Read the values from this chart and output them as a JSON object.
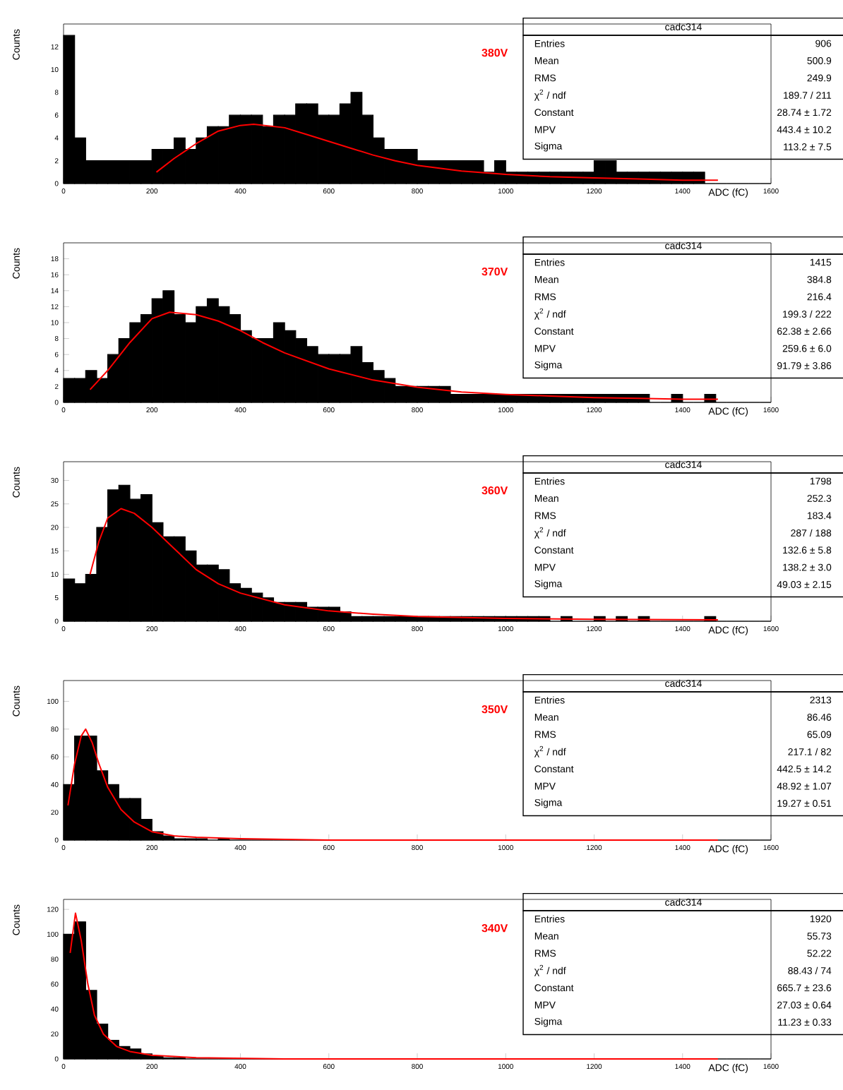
{
  "chart_data": [
    {
      "type": "histogram",
      "title": "380V",
      "xlabel": "ADC (fC)",
      "ylabel": "Counts",
      "series": [
        {
          "type": "histogram",
          "color": "#000000",
          "bins": [
            0,
            25,
            50,
            75,
            100,
            125,
            150,
            175,
            200,
            225,
            250,
            275,
            300,
            325,
            350,
            375,
            400,
            425,
            450,
            475,
            500,
            525,
            550,
            575,
            600,
            625,
            650,
            675,
            700,
            725,
            750,
            775,
            800,
            825,
            850,
            875,
            900,
            925,
            950,
            975,
            1000,
            1025,
            1050,
            1075,
            1100,
            1125,
            1150,
            1175,
            1200,
            1225,
            1250,
            1275,
            1300,
            1325,
            1350,
            1375,
            1400,
            1425,
            1450,
            1475,
            1500,
            1525,
            1550,
            1575,
            1600
          ],
          "values": [
            13,
            4,
            2,
            2,
            2,
            2,
            2,
            2,
            3,
            3,
            4,
            3,
            4,
            5,
            5,
            6,
            6,
            6,
            5,
            6,
            6,
            7,
            7,
            6,
            6,
            7,
            8,
            6,
            4,
            3,
            3,
            3,
            2,
            2,
            2,
            2,
            2,
            2,
            1,
            2,
            1,
            1,
            1,
            1,
            1,
            1,
            1,
            1,
            2,
            2,
            1,
            1,
            1,
            1,
            1,
            1,
            1,
            1,
            0,
            0,
            0,
            0,
            0,
            0
          ]
        },
        {
          "type": "line",
          "color": "#ff0000",
          "x": [
            210,
            250,
            300,
            350,
            400,
            430,
            500,
            550,
            600,
            650,
            700,
            750,
            800,
            900,
            1000,
            1100,
            1200,
            1300,
            1400,
            1480
          ],
          "values": [
            1.0,
            2.2,
            3.5,
            4.6,
            5.1,
            5.2,
            4.9,
            4.3,
            3.7,
            3.1,
            2.5,
            2.0,
            1.6,
            1.1,
            0.8,
            0.6,
            0.5,
            0.4,
            0.3,
            0.3
          ]
        }
      ],
      "xlim": [
        0,
        1600
      ],
      "ylim": [
        0,
        14
      ],
      "xticks": [
        0,
        200,
        400,
        600,
        800,
        1000,
        1200,
        1400,
        1600
      ],
      "yticks": [
        0,
        2,
        4,
        6,
        8,
        10,
        12
      ],
      "annotations": [
        "cadc314",
        "Entries",
        "906",
        "Mean",
        "500.9",
        "RMS",
        "249.9",
        "χ$^{2}$ / ndf",
        "189.7 / 211",
        "Constant",
        "28.74 ± 1.72",
        "MPV",
        "443.4 ± 10.2",
        "Sigma",
        "113.2 ± 7.5"
      ]
    },
    {
      "type": "histogram",
      "title": "370V",
      "xlabel": "ADC (fC)",
      "ylabel": "Counts",
      "series": [
        {
          "type": "histogram",
          "color": "#000000",
          "bins": [
            0,
            25,
            50,
            75,
            100,
            125,
            150,
            175,
            200,
            225,
            250,
            275,
            300,
            325,
            350,
            375,
            400,
            425,
            450,
            475,
            500,
            525,
            550,
            575,
            600,
            625,
            650,
            675,
            700,
            725,
            750,
            775,
            800,
            825,
            850,
            875,
            900,
            925,
            950,
            975,
            1000,
            1025,
            1050,
            1075,
            1100,
            1125,
            1150,
            1175,
            1200,
            1225,
            1250,
            1275,
            1300,
            1325,
            1350,
            1375,
            1400,
            1425,
            1450,
            1475,
            1500,
            1525,
            1550,
            1575,
            1600
          ],
          "values": [
            3,
            3,
            4,
            3,
            6,
            8,
            10,
            11,
            13,
            14,
            11,
            10,
            12,
            13,
            12,
            11,
            9,
            8,
            8,
            10,
            9,
            8,
            7,
            6,
            6,
            6,
            7,
            5,
            4,
            3,
            2,
            2,
            2,
            2,
            2,
            1,
            1,
            1,
            1,
            1,
            1,
            1,
            1,
            1,
            1,
            1,
            1,
            1,
            1,
            1,
            1,
            1,
            1,
            0,
            0,
            1,
            0,
            0,
            1,
            0,
            0,
            0,
            0,
            0
          ]
        },
        {
          "type": "line",
          "color": "#ff0000",
          "x": [
            60,
            100,
            150,
            200,
            240,
            300,
            350,
            400,
            450,
            500,
            600,
            700,
            800,
            900,
            1000,
            1100,
            1200,
            1300,
            1400,
            1480
          ],
          "values": [
            1.6,
            4,
            7.5,
            10.5,
            11.3,
            11,
            10.2,
            9,
            7.5,
            6.2,
            4.2,
            2.8,
            1.9,
            1.3,
            1.0,
            0.8,
            0.6,
            0.5,
            0.4,
            0.4
          ]
        }
      ],
      "xlim": [
        0,
        1600
      ],
      "ylim": [
        0,
        20
      ],
      "xticks": [
        0,
        200,
        400,
        600,
        800,
        1000,
        1200,
        1400,
        1600
      ],
      "yticks": [
        0,
        2,
        4,
        6,
        8,
        10,
        12,
        14,
        16,
        18
      ],
      "annotations": [
        "cadc314",
        "Entries",
        "1415",
        "Mean",
        "384.8",
        "RMS",
        "216.4",
        "χ$^{2}$ / ndf",
        "199.3 / 222",
        "Constant",
        "62.38 ± 2.66",
        "MPV",
        "259.6 ± 6.0",
        "Sigma",
        "91.79 ± 3.86"
      ]
    },
    {
      "type": "histogram",
      "title": "360V",
      "xlabel": "ADC (fC)",
      "ylabel": "Counts",
      "series": [
        {
          "type": "histogram",
          "color": "#000000",
          "bins": [
            0,
            25,
            50,
            75,
            100,
            125,
            150,
            175,
            200,
            225,
            250,
            275,
            300,
            325,
            350,
            375,
            400,
            425,
            450,
            475,
            500,
            525,
            550,
            575,
            600,
            625,
            650,
            675,
            700,
            725,
            750,
            775,
            800,
            825,
            850,
            875,
            900,
            925,
            950,
            975,
            1000,
            1025,
            1050,
            1075,
            1100,
            1125,
            1150,
            1175,
            1200,
            1225,
            1250,
            1275,
            1300,
            1325,
            1350,
            1375,
            1400,
            1425,
            1450,
            1475,
            1500,
            1525,
            1550,
            1575,
            1600
          ],
          "values": [
            9,
            8,
            10,
            20,
            28,
            29,
            26,
            27,
            21,
            18,
            18,
            15,
            12,
            12,
            11,
            8,
            7,
            6,
            5,
            4,
            4,
            4,
            3,
            3,
            3,
            2,
            1,
            1,
            1,
            1,
            1,
            1,
            1,
            1,
            1,
            1,
            1,
            1,
            1,
            1,
            1,
            1,
            1,
            1,
            0,
            1,
            0,
            0,
            1,
            0,
            1,
            0,
            1,
            0,
            0,
            0,
            0,
            0,
            1,
            0,
            0,
            0,
            0,
            0
          ]
        },
        {
          "type": "line",
          "color": "#ff0000",
          "x": [
            60,
            80,
            100,
            130,
            160,
            200,
            250,
            300,
            350,
            400,
            500,
            600,
            700,
            800,
            1000,
            1200,
            1480
          ],
          "values": [
            10,
            17,
            22,
            24,
            23,
            20,
            15.5,
            11,
            8,
            6,
            3.5,
            2.2,
            1.5,
            1,
            0.6,
            0.4,
            0.3
          ]
        }
      ],
      "xlim": [
        0,
        1600
      ],
      "ylim": [
        0,
        34
      ],
      "xticks": [
        0,
        200,
        400,
        600,
        800,
        1000,
        1200,
        1400,
        1600
      ],
      "yticks": [
        0,
        5,
        10,
        15,
        20,
        25,
        30
      ],
      "annotations": [
        "cadc314",
        "Entries",
        "1798",
        "Mean",
        "252.3",
        "RMS",
        "183.4",
        "χ$^{2}$ / ndf",
        "287 / 188",
        "Constant",
        "132.6 ± 5.8",
        "MPV",
        "138.2 ± 3.0",
        "Sigma",
        "49.03 ± 2.15"
      ]
    },
    {
      "type": "histogram",
      "title": "350V",
      "xlabel": "ADC (fC)",
      "ylabel": "Counts",
      "series": [
        {
          "type": "histogram",
          "color": "#000000",
          "bins": [
            0,
            25,
            50,
            75,
            100,
            125,
            150,
            175,
            200,
            225,
            250,
            275,
            300,
            325,
            350,
            375,
            400,
            425,
            450,
            475,
            500,
            525,
            550,
            575,
            600,
            625,
            650,
            675,
            700,
            725,
            750,
            775,
            800,
            825,
            850,
            875,
            900,
            925,
            950,
            975,
            1000,
            1025,
            1050,
            1075,
            1100,
            1125,
            1150,
            1175,
            1200,
            1225,
            1250,
            1275,
            1300,
            1325,
            1350,
            1375,
            1400,
            1425,
            1450,
            1475,
            1500,
            1525,
            1550,
            1575,
            1600
          ],
          "values": [
            40,
            75,
            75,
            50,
            40,
            30,
            30,
            15,
            6,
            3,
            1,
            1,
            1,
            0,
            1,
            0,
            0,
            0,
            0,
            0,
            0,
            0,
            0,
            0,
            0,
            0,
            0,
            0,
            0,
            0,
            0,
            0,
            0,
            0,
            0,
            0,
            0,
            0,
            0,
            0,
            0,
            0,
            0,
            0,
            0,
            0,
            0,
            0,
            0,
            0,
            0,
            0,
            0,
            0,
            0,
            0,
            0,
            0,
            0,
            0,
            0,
            0,
            0,
            0
          ]
        },
        {
          "type": "line",
          "color": "#ff0000",
          "x": [
            10,
            25,
            40,
            50,
            65,
            80,
            100,
            130,
            160,
            200,
            250,
            300,
            400,
            600,
            1000,
            1480
          ],
          "values": [
            25,
            55,
            75,
            80,
            70,
            55,
            38,
            22,
            13,
            6,
            3,
            2,
            1,
            0,
            0,
            0
          ]
        }
      ],
      "xlim": [
        0,
        1600
      ],
      "ylim": [
        0,
        115
      ],
      "xticks": [
        0,
        200,
        400,
        600,
        800,
        1000,
        1200,
        1400,
        1600
      ],
      "yticks": [
        0,
        20,
        40,
        60,
        80,
        100
      ],
      "annotations": [
        "cadc314",
        "Entries",
        "2313",
        "Mean",
        "86.46",
        "RMS",
        "65.09",
        "χ$^{2}$ / ndf",
        "217.1 / 82",
        "Constant",
        "442.5 ± 14.2",
        "MPV",
        "48.92 ± 1.07",
        "Sigma",
        "19.27 ± 0.51"
      ]
    },
    {
      "type": "histogram",
      "title": "340V",
      "xlabel": "ADC (fC)",
      "ylabel": "Counts",
      "series": [
        {
          "type": "histogram",
          "color": "#000000",
          "bins": [
            0,
            25,
            50,
            75,
            100,
            125,
            150,
            175,
            200,
            225,
            250,
            275,
            300,
            325,
            350,
            375,
            400,
            425,
            450,
            475,
            500,
            525,
            550,
            575,
            600,
            625,
            650,
            675,
            700,
            725,
            750,
            775,
            800,
            825,
            850,
            875,
            900,
            925,
            950,
            975,
            1000,
            1025,
            1050,
            1075,
            1100,
            1125,
            1150,
            1175,
            1200,
            1225,
            1250,
            1275,
            1300,
            1325,
            1350,
            1375,
            1400,
            1425,
            1450,
            1475,
            1500,
            1525,
            1550,
            1575,
            1600
          ],
          "values": [
            100,
            110,
            55,
            28,
            15,
            10,
            8,
            4,
            2,
            1,
            1,
            0,
            0,
            0,
            0,
            0,
            0,
            0,
            0,
            0,
            0,
            0,
            0,
            0,
            0,
            0,
            0,
            0,
            0,
            0,
            0,
            0,
            0,
            0,
            0,
            0,
            0,
            0,
            0,
            0,
            0,
            0,
            0,
            0,
            0,
            0,
            0,
            0,
            0,
            0,
            0,
            0,
            0,
            0,
            0,
            0,
            0,
            0,
            0,
            0,
            0,
            0,
            0,
            0
          ]
        },
        {
          "type": "line",
          "color": "#ff0000",
          "x": [
            15,
            27,
            40,
            55,
            70,
            90,
            120,
            150,
            200,
            300,
            500,
            1000,
            1480
          ],
          "values": [
            85,
            117,
            95,
            60,
            35,
            20,
            10,
            6,
            3,
            1,
            0,
            0,
            0
          ]
        }
      ],
      "xlim": [
        0,
        1600
      ],
      "ylim": [
        0,
        128
      ],
      "xticks": [
        0,
        200,
        400,
        600,
        800,
        1000,
        1200,
        1400,
        1600
      ],
      "yticks": [
        0,
        20,
        40,
        60,
        80,
        100,
        120
      ],
      "annotations": [
        "cadc314",
        "Entries",
        "1920",
        "Mean",
        "55.73",
        "RMS",
        "52.22",
        "χ$^{2}$ / ndf",
        "88.43 / 74",
        "Constant",
        "665.7 ± 23.6",
        "MPV",
        "27.03 ± 0.64",
        "Sigma",
        "11.23 ± 0.33"
      ]
    }
  ]
}
